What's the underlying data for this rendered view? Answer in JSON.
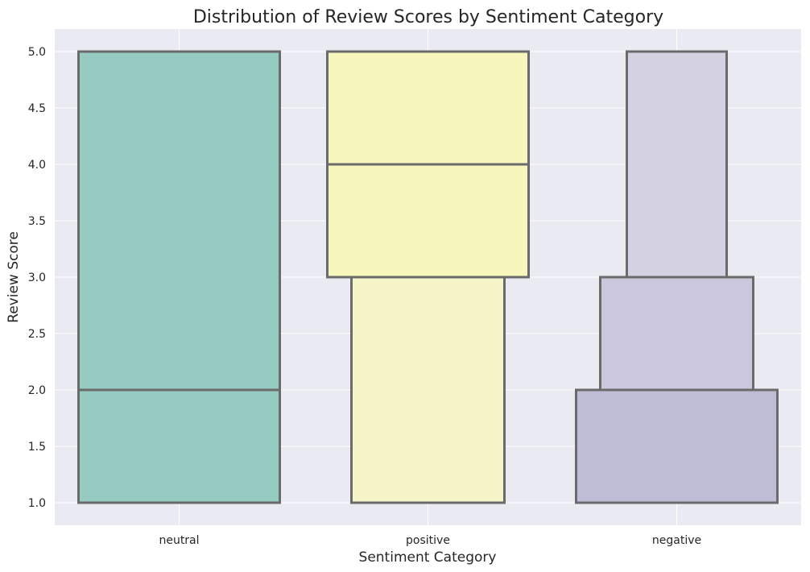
{
  "chart_data": {
    "type": "boxen",
    "title": "Distribution of Review Scores by Sentiment Category",
    "xlabel": "Sentiment Category",
    "ylabel": "Review Score",
    "categories": [
      "neutral",
      "positive",
      "negative"
    ],
    "ylim": [
      0.8,
      5.2
    ],
    "yticks": [
      "1.0",
      "1.5",
      "2.0",
      "2.5",
      "3.0",
      "3.5",
      "4.0",
      "4.5",
      "5.0"
    ],
    "grid": true,
    "series": [
      {
        "category": "neutral",
        "color": "#95cbc1",
        "median": 2.0,
        "levels": [
          {
            "low": 1.0,
            "high": 5.0
          }
        ]
      },
      {
        "category": "positive",
        "color": "#f6f6bd",
        "median": 4.0,
        "levels": [
          {
            "low": 3.0,
            "high": 5.0
          },
          {
            "low": 1.0,
            "high": 3.0
          }
        ]
      },
      {
        "category": "negative",
        "color": "#bfbcd6",
        "median": 1.0,
        "levels": [
          {
            "low": 1.0,
            "high": 2.0
          },
          {
            "low": 2.0,
            "high": 3.0
          },
          {
            "low": 3.0,
            "high": 5.0
          }
        ]
      }
    ],
    "colors": {
      "plot_background": "#eaeaf2",
      "grid": "#ffffff",
      "edge": "#6b6b6b",
      "level_colors": {
        "positive": [
          "#f6f6bd",
          "#f5f5c8"
        ],
        "negative": [
          "#bfbcd6",
          "#cbc8de",
          "#d4d1e3"
        ]
      }
    }
  }
}
